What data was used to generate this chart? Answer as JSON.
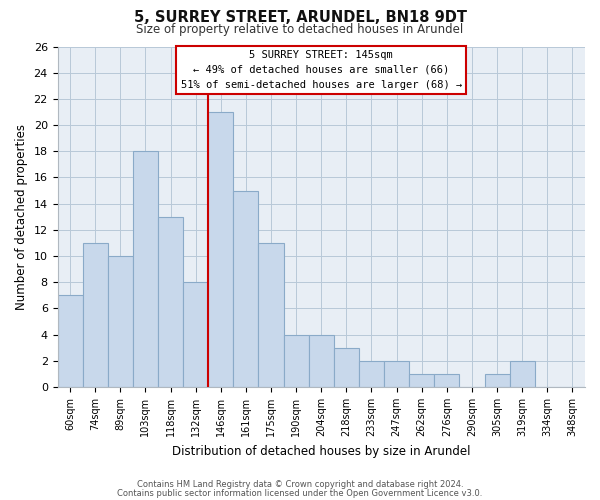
{
  "title": "5, SURREY STREET, ARUNDEL, BN18 9DT",
  "subtitle": "Size of property relative to detached houses in Arundel",
  "xlabel": "Distribution of detached houses by size in Arundel",
  "ylabel": "Number of detached properties",
  "bar_labels": [
    "60sqm",
    "74sqm",
    "89sqm",
    "103sqm",
    "118sqm",
    "132sqm",
    "146sqm",
    "161sqm",
    "175sqm",
    "190sqm",
    "204sqm",
    "218sqm",
    "233sqm",
    "247sqm",
    "262sqm",
    "276sqm",
    "290sqm",
    "305sqm",
    "319sqm",
    "334sqm",
    "348sqm"
  ],
  "bar_values": [
    7,
    11,
    10,
    18,
    13,
    8,
    21,
    15,
    11,
    4,
    4,
    3,
    2,
    2,
    1,
    1,
    0,
    1,
    2,
    0,
    0
  ],
  "bar_color": "#c8d8eb",
  "bar_edge_color": "#8aaac8",
  "highlight_index": 6,
  "highlight_line_color": "#cc0000",
  "ylim": [
    0,
    26
  ],
  "yticks": [
    0,
    2,
    4,
    6,
    8,
    10,
    12,
    14,
    16,
    18,
    20,
    22,
    24,
    26
  ],
  "annotation_title": "5 SURREY STREET: 145sqm",
  "annotation_line1": "← 49% of detached houses are smaller (66)",
  "annotation_line2": "51% of semi-detached houses are larger (68) →",
  "annotation_box_edge": "#cc0000",
  "footnote1": "Contains HM Land Registry data © Crown copyright and database right 2024.",
  "footnote2": "Contains public sector information licensed under the Open Government Licence v3.0.",
  "background_color": "#ffffff",
  "plot_bg_color": "#e8eef5",
  "grid_color": "#b8c8d8"
}
